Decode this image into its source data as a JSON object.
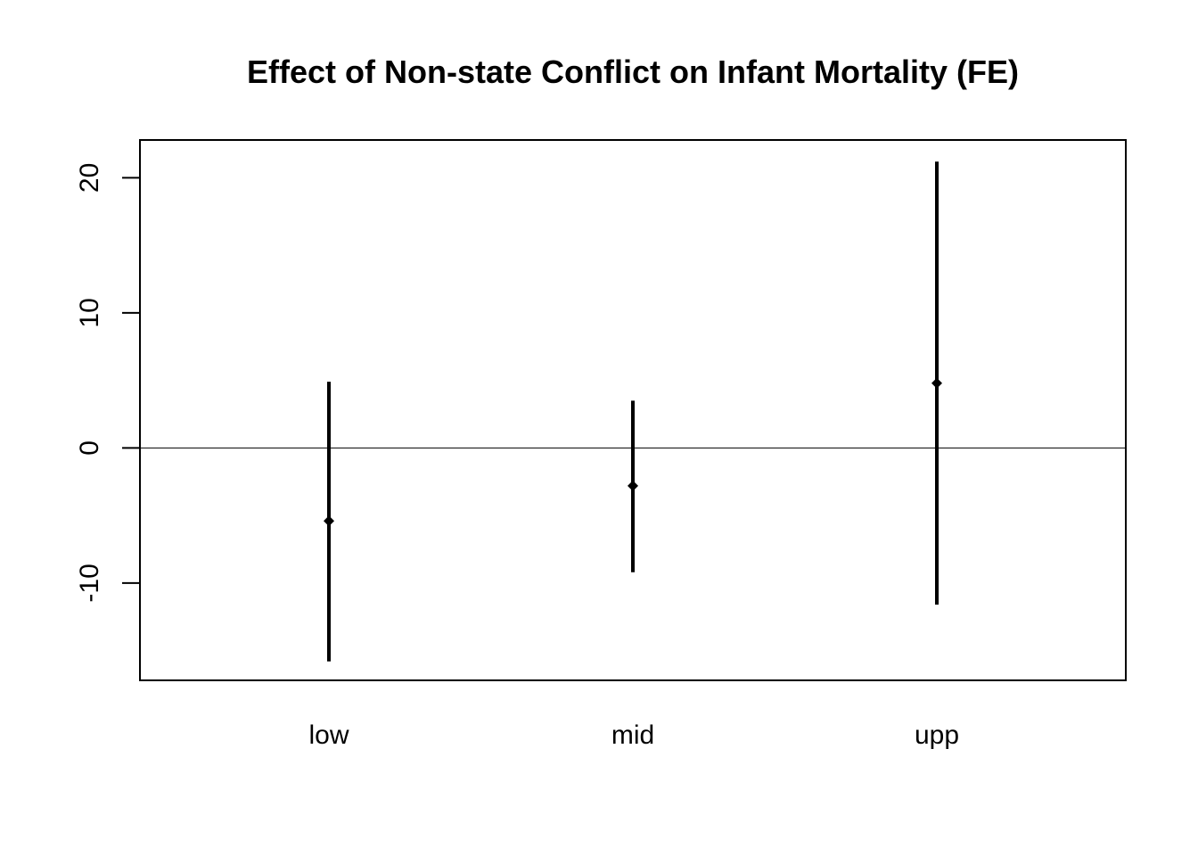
{
  "chart_data": {
    "type": "errorbar",
    "title": "Effect of Non-state Conflict on Infant Mortality (FE)",
    "xlabel": "",
    "ylabel": "",
    "categories": [
      "low",
      "mid",
      "upp"
    ],
    "estimates": [
      -5.4,
      -2.8,
      4.8
    ],
    "lower": [
      -15.8,
      -9.2,
      -11.6
    ],
    "upper": [
      4.9,
      3.5,
      21.2
    ],
    "ylim": [
      -17.2,
      22.8
    ],
    "yticks": [
      -10,
      0,
      10,
      20
    ],
    "ytick_labels": [
      "-10",
      "0",
      "10",
      "20"
    ],
    "reference_line": 0,
    "grid": false,
    "legend": "none",
    "colors": {
      "marks": "#000000",
      "background": "#ffffff"
    }
  }
}
